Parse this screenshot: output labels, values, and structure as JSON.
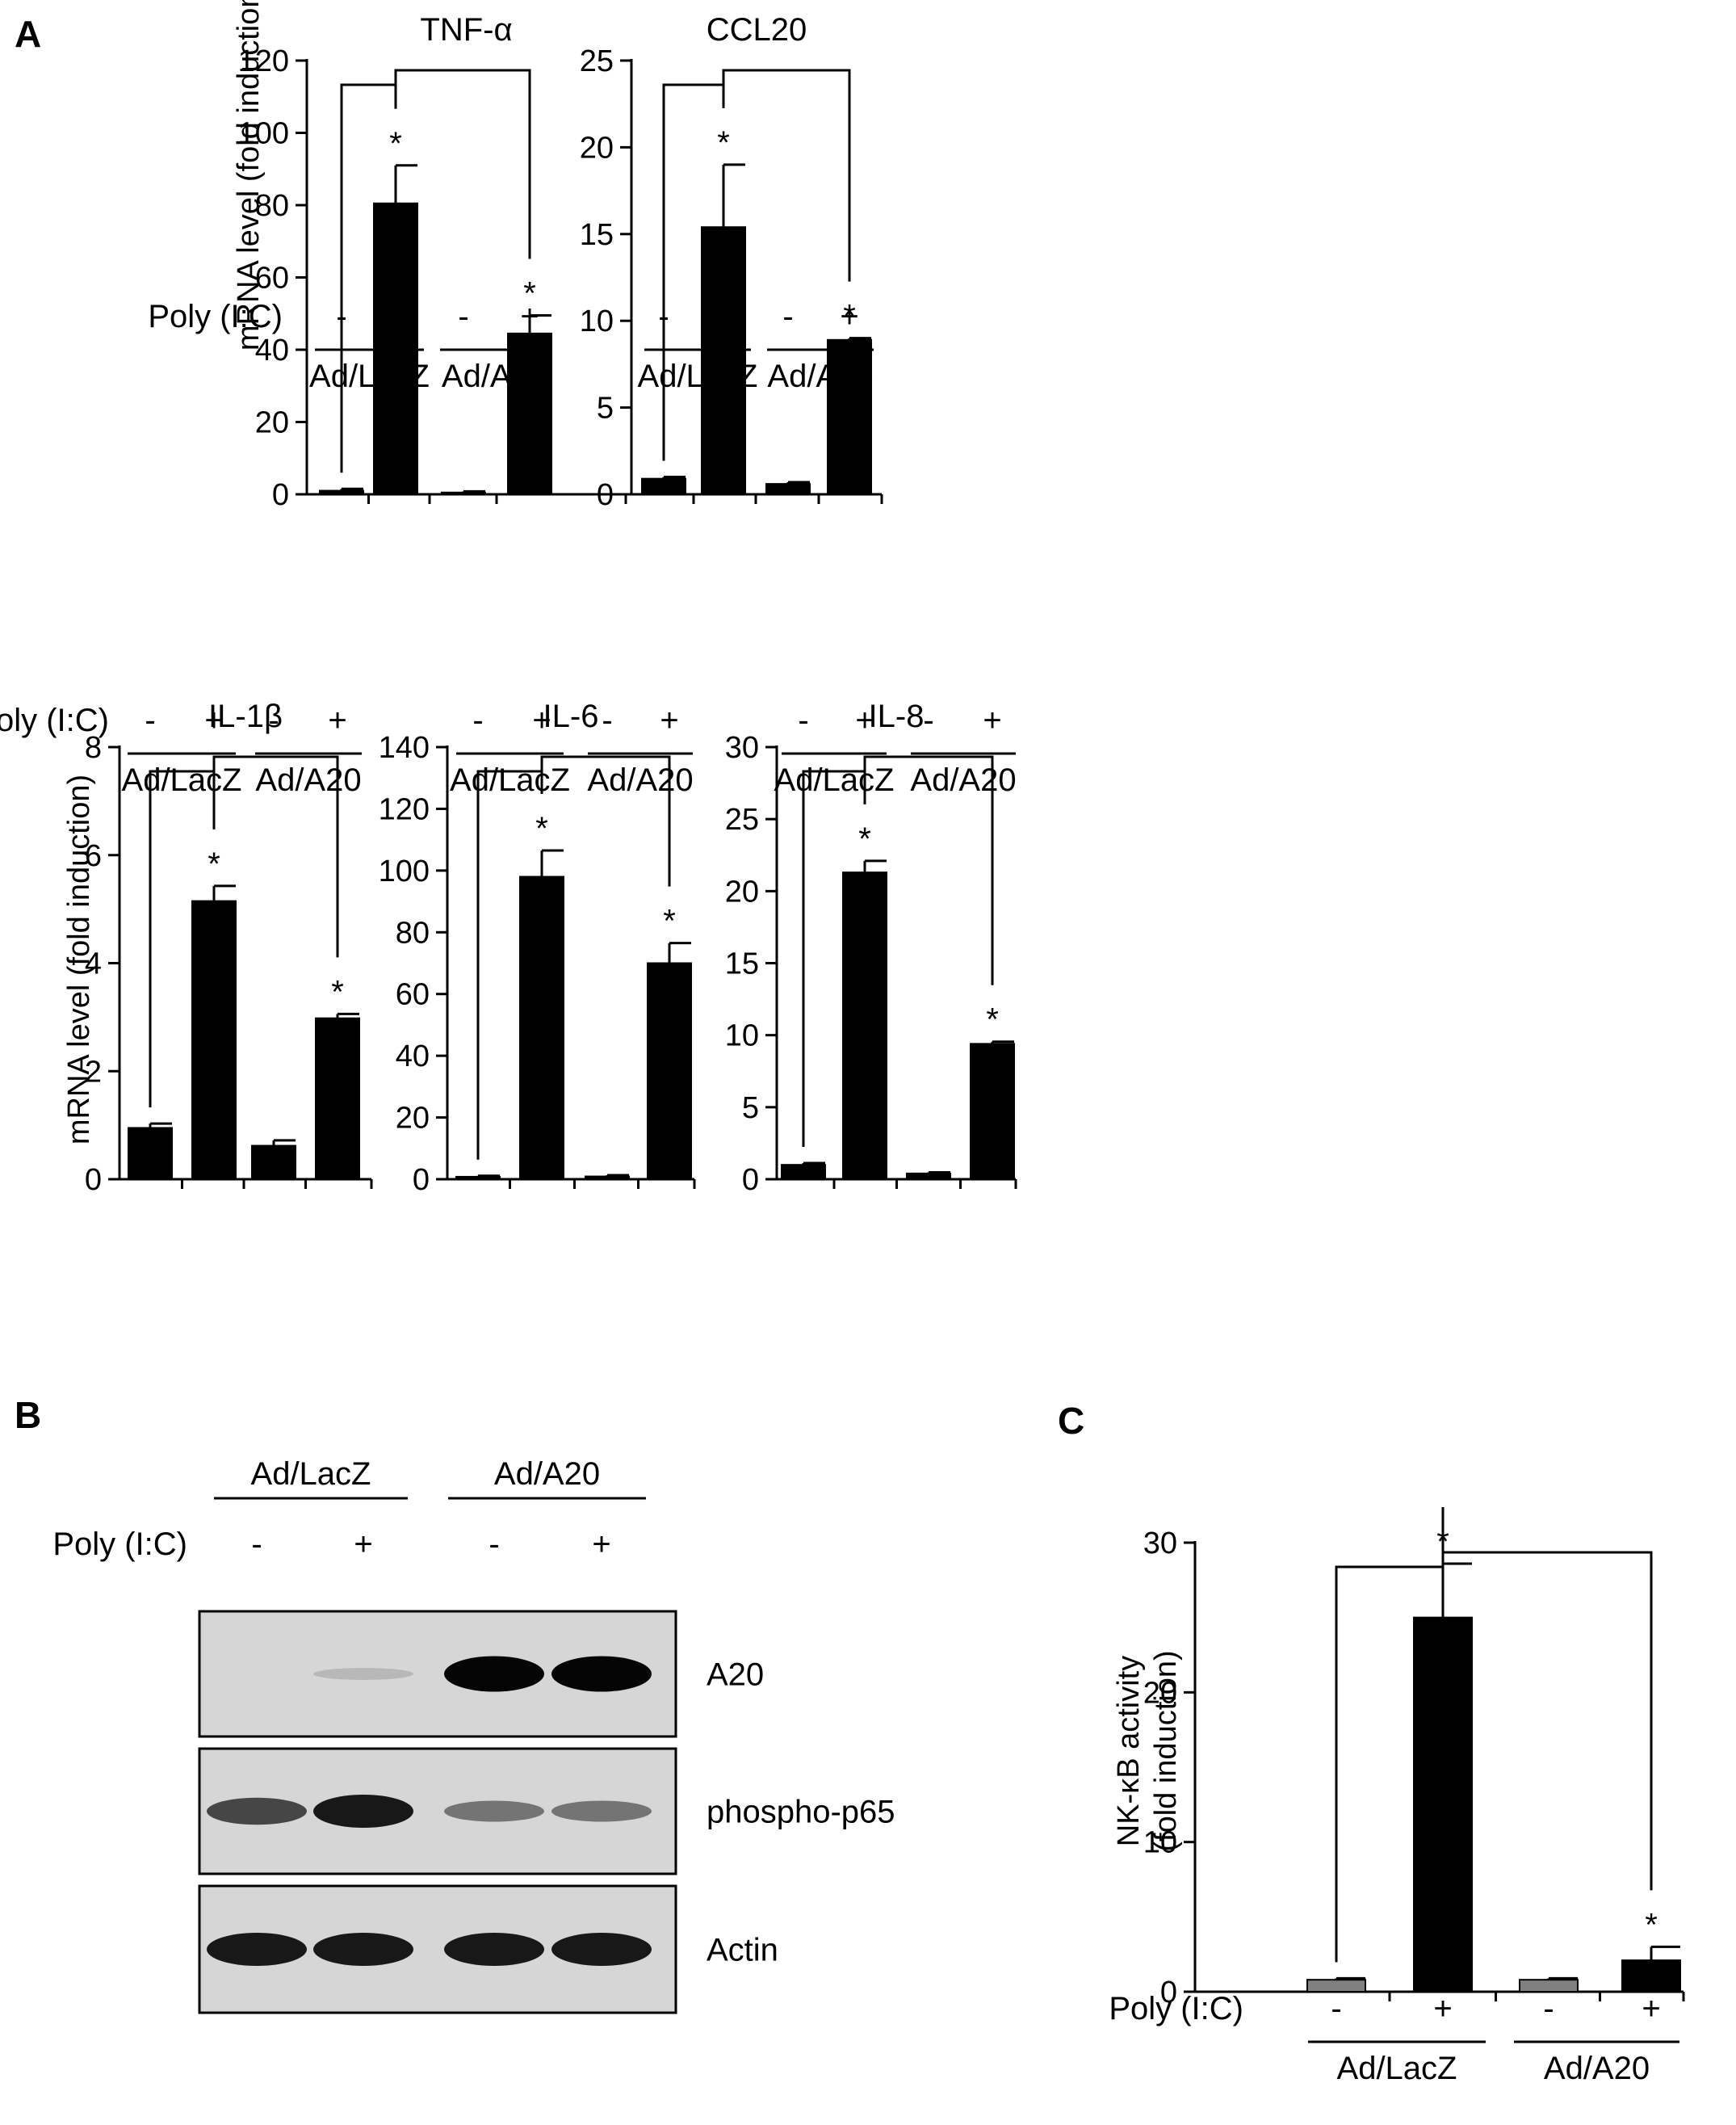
{
  "panels": {
    "A": {
      "letter": "A"
    },
    "B": {
      "letter": "B",
      "groups": [
        "Ad/LacZ",
        "Ad/A20"
      ],
      "treatment_label": "Poly (I:C)",
      "treatment_signs": [
        "-",
        "+",
        "-",
        "+"
      ],
      "blots": [
        {
          "name": "A20",
          "intensity": [
            0.0,
            0.03,
            1.0,
            1.0
          ]
        },
        {
          "name": "phospho-p65",
          "intensity": [
            0.65,
            0.9,
            0.4,
            0.4
          ]
        },
        {
          "name": "Actin",
          "intensity": [
            0.9,
            0.9,
            0.9,
            0.9
          ]
        }
      ]
    },
    "C": {
      "letter": "C"
    }
  },
  "chart_data": [
    {
      "id": "tnf",
      "type": "bar",
      "title": "TNF-α",
      "ylabel": "mRNA level (fold induction)",
      "ylim": [
        0,
        120
      ],
      "yticks": [
        0,
        20,
        40,
        60,
        80,
        100,
        120
      ],
      "categories": [
        "-",
        "+",
        "-",
        "+"
      ],
      "values": [
        1,
        80.5,
        0.5,
        44.5
      ],
      "errors": [
        0.5,
        10.5,
        0.3,
        5
      ],
      "significance": [
        "",
        "*",
        "",
        "*"
      ],
      "bar_colors": [
        "#000000",
        "#000000",
        "#000000",
        "#000000"
      ],
      "treatment_label": "Poly (I:C)",
      "groups": [
        "Ad/LacZ",
        "Ad/A20"
      ]
    },
    {
      "id": "ccl20",
      "type": "bar",
      "title": "CCL20",
      "ylabel": "",
      "ylim": [
        0,
        25
      ],
      "yticks": [
        0,
        5,
        10,
        15,
        20,
        25
      ],
      "categories": [
        "-",
        "+",
        "-",
        "+"
      ],
      "values": [
        0.9,
        15.4,
        0.6,
        8.9
      ],
      "errors": [
        0.1,
        3.6,
        0.1,
        0.1
      ],
      "significance": [
        "",
        "*",
        "",
        "*"
      ],
      "bar_colors": [
        "#000000",
        "#000000",
        "#000000",
        "#000000"
      ],
      "treatment_label": "",
      "groups": [
        "Ad/LacZ",
        "Ad/A20"
      ]
    },
    {
      "id": "il1b",
      "type": "bar",
      "title": "IL-1β",
      "ylabel": "mRNA level (fold induction)",
      "ylim": [
        0,
        8
      ],
      "yticks": [
        0,
        2,
        4,
        6,
        8
      ],
      "categories": [
        "-",
        "+",
        "-",
        "+"
      ],
      "values": [
        0.95,
        5.15,
        0.62,
        2.98
      ],
      "errors": [
        0.08,
        0.28,
        0.1,
        0.08
      ],
      "significance": [
        "",
        "*",
        "",
        "*"
      ],
      "bar_colors": [
        "#000000",
        "#000000",
        "#000000",
        "#000000"
      ],
      "treatment_label": "Poly (I:C)",
      "groups": [
        "Ad/LacZ",
        "Ad/A20"
      ]
    },
    {
      "id": "il6",
      "type": "bar",
      "title": "IL-6",
      "ylabel": "",
      "ylim": [
        0,
        140
      ],
      "yticks": [
        0,
        20,
        40,
        60,
        80,
        100,
        120,
        140
      ],
      "categories": [
        "-",
        "+",
        "-",
        "+"
      ],
      "values": [
        0.8,
        98,
        0.9,
        70
      ],
      "errors": [
        0.3,
        8.5,
        0.4,
        6.5
      ],
      "significance": [
        "",
        "*",
        "",
        "*"
      ],
      "bar_colors": [
        "#000000",
        "#000000",
        "#000000",
        "#000000"
      ],
      "treatment_label": "",
      "groups": [
        "Ad/LacZ",
        "Ad/A20"
      ]
    },
    {
      "id": "il8",
      "type": "bar",
      "title": "IL-8",
      "ylabel": "",
      "ylim": [
        0,
        30
      ],
      "yticks": [
        0,
        5,
        10,
        15,
        20,
        25,
        30
      ],
      "categories": [
        "-",
        "+",
        "-",
        "+"
      ],
      "values": [
        1,
        21.3,
        0.4,
        9.4
      ],
      "errors": [
        0.12,
        0.8,
        0.08,
        0.15
      ],
      "significance": [
        "",
        "*",
        "",
        "*"
      ],
      "bar_colors": [
        "#000000",
        "#000000",
        "#000000",
        "#000000"
      ],
      "treatment_label": "",
      "groups": [
        "Ad/LacZ",
        "Ad/A20"
      ]
    },
    {
      "id": "nfkb",
      "type": "bar",
      "title": "",
      "ylabel_lines": [
        "NK-κB activity",
        "(fold induction)"
      ],
      "ylim": [
        0,
        30
      ],
      "yticks": [
        0,
        10,
        20,
        30
      ],
      "categories": [
        "-",
        "+",
        "-",
        "+"
      ],
      "values": [
        0.8,
        25,
        0.8,
        2.1
      ],
      "errors": [
        0.1,
        3.6,
        0.1,
        0.9
      ],
      "significance": [
        "",
        "*",
        "",
        "*"
      ],
      "bar_colors": [
        "#808080",
        "#000000",
        "#808080",
        "#000000"
      ],
      "treatment_label": "Poly (I:C)",
      "groups": [
        "Ad/LacZ",
        "Ad/A20"
      ]
    }
  ]
}
